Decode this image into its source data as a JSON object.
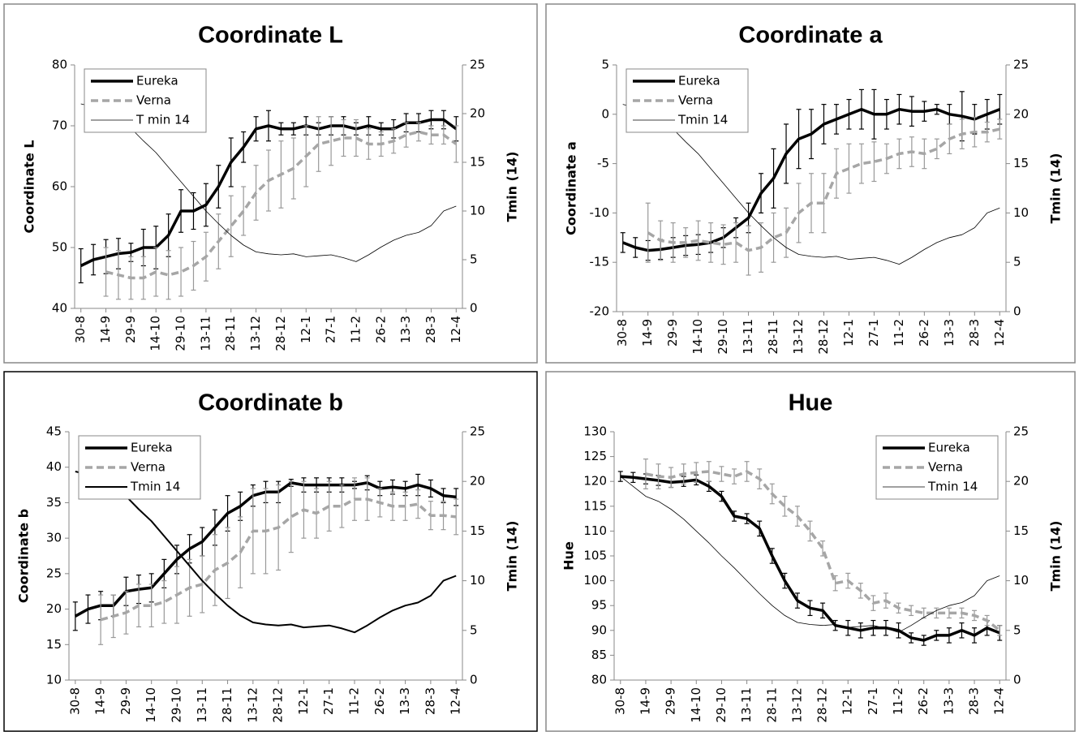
{
  "chart_data": [
    {
      "type": "line",
      "title": "Coordinate L",
      "ylabel": "Coordinate L",
      "y2label": "Tmin (14)",
      "legend": "upper left",
      "categories": [
        "30-8",
        null,
        "14-9",
        null,
        "29-9",
        null,
        "14-10",
        null,
        "29-10",
        null,
        "13-11",
        null,
        "28-11",
        null,
        "13-12",
        null,
        "28-12",
        null,
        "12-1",
        null,
        "27-1",
        null,
        "11-2",
        null,
        "26-2",
        null,
        "13-3",
        null,
        "28-3",
        null,
        "12-4"
      ],
      "ylim": [
        40,
        80
      ],
      "yticks": [
        40,
        50,
        60,
        70,
        80
      ],
      "y2lim": [
        0,
        25
      ],
      "y2ticks": [
        0,
        5,
        10,
        15,
        20,
        25
      ],
      "series": [
        {
          "name": "Eureka",
          "color": "#000000",
          "style": "solid",
          "width": 3.5,
          "values": [
            47,
            48,
            48.5,
            49,
            49.2,
            50,
            50,
            52,
            56,
            56,
            57,
            60,
            64,
            66.5,
            69.5,
            70,
            69.5,
            69.5,
            70,
            69.5,
            70,
            70,
            69.5,
            70,
            69.5,
            69.5,
            70.5,
            70.5,
            71,
            71,
            69.5
          ],
          "error": [
            2.8,
            2.5,
            2.8,
            2.5,
            1.5,
            3,
            3.5,
            3.5,
            3.5,
            3,
            3.5,
            3.5,
            4,
            2.5,
            2,
            2.5,
            1,
            1,
            1.5,
            1,
            1.5,
            1.5,
            1,
            1.5,
            1,
            1.5,
            1.5,
            1.5,
            1.5,
            1.5,
            2
          ]
        },
        {
          "name": "Verna",
          "color": "#a6a6a6",
          "style": "dashed",
          "width": 3.5,
          "values": [
            null,
            null,
            46,
            45.5,
            45,
            45,
            46,
            45.5,
            46,
            47,
            48.5,
            51,
            53.5,
            56,
            59,
            61,
            62,
            63,
            65,
            67,
            67.5,
            68,
            68,
            67,
            67,
            67.5,
            68.5,
            69,
            68.5,
            68.5,
            67
          ],
          "error": [
            null,
            null,
            4,
            4,
            3.5,
            3.5,
            4,
            4,
            4,
            4,
            4,
            4.5,
            5,
            4,
            4.5,
            5,
            5.5,
            5,
            5,
            4.5,
            4,
            3,
            3,
            2.5,
            2,
            2,
            2,
            1.5,
            1.5,
            1.5,
            3
          ]
        },
        {
          "name": "T min 14",
          "color": "#000000",
          "style": "solid",
          "width": 0.8,
          "axis": "y2",
          "values": [
            21,
            20.7,
            20.2,
            19.5,
            18.5,
            17.2,
            16,
            14.5,
            13,
            11.5,
            10,
            8.7,
            7.5,
            6.5,
            5.8,
            5.6,
            5.5,
            5.6,
            5.3,
            5.4,
            5.5,
            5.2,
            4.8,
            5.5,
            6.3,
            7,
            7.5,
            7.8,
            8.5,
            10,
            10.5
          ]
        }
      ]
    },
    {
      "type": "line",
      "title": "Coordinate a",
      "ylabel": "Coordinate a",
      "y2label": "Tmin (14)",
      "legend": "upper left",
      "categories": [
        "30-8",
        null,
        "14-9",
        null,
        "29-9",
        null,
        "14-10",
        null,
        "29-10",
        null,
        "13-11",
        null,
        "28-11",
        null,
        "13-12",
        null,
        "28-12",
        null,
        "12-1",
        null,
        "27-1",
        null,
        "11-2",
        null,
        "26-2",
        null,
        "13-3",
        null,
        "28-3",
        null,
        "12-4"
      ],
      "ylim": [
        -20,
        5
      ],
      "yticks": [
        -20,
        -15,
        -10,
        -5,
        0,
        5
      ],
      "y2lim": [
        0,
        25
      ],
      "y2ticks": [
        0,
        5,
        10,
        15,
        20,
        25
      ],
      "series": [
        {
          "name": "Eureka",
          "color": "#000000",
          "style": "solid",
          "width": 3.5,
          "values": [
            -13,
            -13.5,
            -13.8,
            -13.7,
            -13.5,
            -13.3,
            -13.2,
            -13,
            -12.5,
            -11.5,
            -10.5,
            -8,
            -6.5,
            -4,
            -2.5,
            -2,
            -1,
            -0.5,
            0,
            0.5,
            0,
            0,
            0.5,
            0.3,
            0.3,
            0.5,
            0,
            -0.2,
            -0.5,
            0,
            0.5
          ],
          "error": [
            1,
            1,
            1,
            1,
            1,
            1,
            1,
            1,
            1,
            1,
            1.5,
            2,
            3,
            3,
            3,
            2.5,
            2,
            1.5,
            1.5,
            2,
            2.5,
            1.5,
            1.5,
            1.5,
            1,
            0.5,
            1,
            2.5,
            1.5,
            1.5,
            1.5
          ]
        },
        {
          "name": "Verna",
          "color": "#a6a6a6",
          "style": "dashed",
          "width": 3.5,
          "values": [
            null,
            null,
            -12,
            -12.8,
            -13,
            -13,
            -12.8,
            -13,
            -13.2,
            -13,
            -13.8,
            -13.5,
            -12.5,
            -12,
            -10,
            -9,
            -9,
            -6,
            -5.5,
            -5,
            -4.8,
            -4.5,
            -4,
            -3.8,
            -4,
            -3.5,
            -2.5,
            -2,
            -1.8,
            -1.8,
            -1.5
          ],
          "error": [
            null,
            null,
            3,
            2,
            2,
            1.5,
            2,
            2,
            2,
            2,
            2.5,
            2.5,
            2.5,
            2.5,
            3,
            3,
            3,
            2.5,
            2.5,
            2,
            2,
            1.5,
            1.5,
            1.5,
            1.5,
            1,
            1.5,
            1.5,
            1.5,
            1,
            1
          ]
        },
        {
          "name": "Tmin 14",
          "color": "#000000",
          "style": "solid",
          "width": 0.8,
          "axis": "y2",
          "values": [
            21,
            20.7,
            20.2,
            19.5,
            18.5,
            17.2,
            16,
            14.5,
            13,
            11.5,
            10,
            8.7,
            7.5,
            6.5,
            5.8,
            5.6,
            5.5,
            5.6,
            5.3,
            5.4,
            5.5,
            5.2,
            4.8,
            5.5,
            6.3,
            7,
            7.5,
            7.8,
            8.5,
            10,
            10.5
          ]
        }
      ]
    },
    {
      "type": "line",
      "title": "Coordinate b",
      "ylabel": "Coordinate b",
      "y2label": "Tmin (14)",
      "legend": "upper left",
      "categories": [
        "30-8",
        null,
        "14-9",
        null,
        "29-9",
        null,
        "14-10",
        null,
        "29-10",
        null,
        "13-11",
        null,
        "28-11",
        null,
        "13-12",
        null,
        "28-12",
        null,
        "12-1",
        null,
        "27-1",
        null,
        "11-2",
        null,
        "26-2",
        null,
        "13-3",
        null,
        "28-3",
        null,
        "12-4"
      ],
      "ylim": [
        10,
        45
      ],
      "yticks": [
        10,
        15,
        20,
        25,
        30,
        35,
        40,
        45
      ],
      "y2lim": [
        0,
        25
      ],
      "y2ticks": [
        0,
        5,
        10,
        15,
        20,
        25
      ],
      "series": [
        {
          "name": "Eureka",
          "color": "#000000",
          "style": "solid",
          "width": 3.5,
          "values": [
            19,
            20,
            20.5,
            20.5,
            22.5,
            22.8,
            23,
            25,
            27,
            28.5,
            29.5,
            31.5,
            33.5,
            34.5,
            36,
            36.5,
            36.5,
            37.8,
            37.5,
            37.5,
            37.5,
            37.5,
            37.5,
            37.8,
            37,
            37.2,
            37,
            37.5,
            37,
            36,
            35.8
          ],
          "error": [
            2,
            2,
            2,
            1.5,
            2,
            2,
            2,
            2,
            2,
            2,
            2,
            2.5,
            2.5,
            2,
            1.5,
            1.5,
            1.5,
            0.5,
            1,
            1,
            1,
            1,
            0.5,
            1,
            1,
            1,
            1,
            1.5,
            1.2,
            1,
            1.2
          ]
        },
        {
          "name": "Verna",
          "color": "#a6a6a6",
          "style": "dashed",
          "width": 3.5,
          "values": [
            null,
            null,
            18.5,
            19,
            19.5,
            20.5,
            20.5,
            21,
            22,
            23,
            23.5,
            25.5,
            26.5,
            28,
            31,
            31,
            31.5,
            33,
            34,
            33.5,
            34.5,
            34.5,
            35.5,
            35.5,
            35,
            34.5,
            34.5,
            34.8,
            33.2,
            33.2,
            33
          ],
          "error": [
            null,
            null,
            3.5,
            3,
            3,
            3,
            3,
            3,
            4,
            4,
            4,
            5,
            5,
            5,
            6,
            6,
            6,
            5,
            4,
            3.5,
            3.5,
            3,
            3,
            3,
            2,
            2,
            2,
            2,
            2,
            2,
            2.5
          ]
        },
        {
          "name": "Tmin 14",
          "color": "#000000",
          "style": "solid",
          "width": 2,
          "axis": "y2",
          "values": [
            21,
            20.7,
            20.2,
            19.5,
            18.5,
            17.2,
            16,
            14.5,
            13,
            11.5,
            10,
            8.7,
            7.5,
            6.5,
            5.8,
            5.6,
            5.5,
            5.6,
            5.3,
            5.4,
            5.5,
            5.2,
            4.8,
            5.5,
            6.3,
            7,
            7.5,
            7.8,
            8.5,
            10,
            10.5
          ]
        }
      ]
    },
    {
      "type": "line",
      "title": "Hue",
      "ylabel": "Hue",
      "y2label": "Tmin (14)",
      "legend": "upper right",
      "categories": [
        "30-8",
        null,
        "14-9",
        null,
        "29-9",
        null,
        "14-10",
        null,
        "29-10",
        null,
        "13-11",
        null,
        "28-11",
        null,
        "13-12",
        null,
        "28-12",
        null,
        "12-1",
        null,
        "27-1",
        null,
        "11-2",
        null,
        "26-2",
        null,
        "13-3",
        null,
        "28-3",
        null,
        "12-4"
      ],
      "ylim": [
        80,
        130
      ],
      "yticks": [
        80,
        85,
        90,
        95,
        100,
        105,
        110,
        115,
        120,
        125,
        130
      ],
      "y2lim": [
        0,
        25
      ],
      "y2ticks": [
        0,
        5,
        10,
        15,
        20,
        25
      ],
      "series": [
        {
          "name": "Eureka",
          "color": "#000000",
          "style": "solid",
          "width": 3.5,
          "values": [
            121,
            120.8,
            120.5,
            120.2,
            119.8,
            120,
            120.3,
            119,
            117,
            113,
            112.5,
            110.5,
            105,
            100,
            96,
            94.5,
            94,
            91,
            90.5,
            90,
            90.5,
            90.5,
            90,
            88.5,
            88,
            89,
            89,
            90,
            89,
            90.5,
            89.5
          ],
          "error": [
            1,
            1,
            1,
            1,
            1,
            1,
            1,
            1,
            1,
            1,
            1,
            1.5,
            1.5,
            1.5,
            1.5,
            1.5,
            1.5,
            1,
            1.5,
            1.5,
            1.5,
            1.5,
            1.5,
            1,
            1,
            1,
            1.5,
            1.5,
            1.5,
            1.5,
            1.5
          ]
        },
        {
          "name": "Verna",
          "color": "#a6a6a6",
          "style": "dashed",
          "width": 3.5,
          "values": [
            null,
            null,
            121.5,
            121,
            120.8,
            121.5,
            121.8,
            122,
            121.5,
            121,
            122,
            120.5,
            117.5,
            115,
            113,
            110,
            106.5,
            99.5,
            100,
            98,
            95.5,
            96,
            94.5,
            94,
            93.5,
            93.5,
            93.5,
            93.5,
            93,
            92,
            90
          ],
          "error": [
            null,
            null,
            3,
            2.5,
            2,
            2,
            2,
            2,
            1.5,
            1.5,
            2,
            2,
            2,
            2,
            2,
            2,
            1.5,
            1.5,
            1.5,
            1.5,
            1.5,
            1.5,
            1,
            1,
            1,
            1,
            1,
            1,
            1,
            1,
            1
          ]
        },
        {
          "name": "Tmin 14",
          "color": "#000000",
          "style": "solid",
          "width": 0.8,
          "axis": "y2",
          "values": [
            20.5,
            19.5,
            18.5,
            18,
            17.2,
            16.2,
            15,
            13.8,
            12.5,
            11.3,
            10,
            8.7,
            7.5,
            6.5,
            5.8,
            5.6,
            5.5,
            5.6,
            5.3,
            5.4,
            5.5,
            5.2,
            4.8,
            5.5,
            6.3,
            7,
            7.5,
            7.8,
            8.5,
            10,
            10.5
          ]
        }
      ]
    }
  ]
}
